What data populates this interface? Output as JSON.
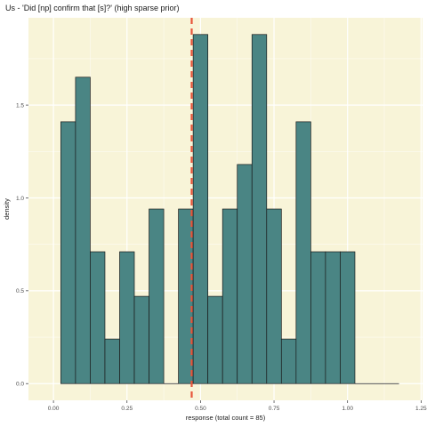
{
  "chart_data": {
    "type": "bar",
    "title": "Us - 'Did [np] confirm that [s]?' (high sparse prior)",
    "xlabel": "response (total count = 85)",
    "ylabel": "density",
    "xlim": [
      -0.085,
      1.255
    ],
    "ylim": [
      -0.09,
      1.97
    ],
    "x_ticks": [
      0,
      0.25,
      0.5,
      0.75,
      1,
      1.25
    ],
    "x_tick_labels": [
      "0.00",
      "0.25",
      "0.50",
      "0.75",
      "1.00",
      "1.25"
    ],
    "y_ticks": [
      0,
      0.5,
      1,
      1.5
    ],
    "y_tick_labels": [
      "0.0",
      "0.5",
      "1.0",
      "1.5"
    ],
    "bin_width": 0.05,
    "bins": [
      {
        "start": 0.025,
        "end": 0.075,
        "density": 1.41
      },
      {
        "start": 0.075,
        "end": 0.125,
        "density": 1.65
      },
      {
        "start": 0.125,
        "end": 0.175,
        "density": 0.71
      },
      {
        "start": 0.175,
        "end": 0.225,
        "density": 0.24
      },
      {
        "start": 0.225,
        "end": 0.275,
        "density": 0.71
      },
      {
        "start": 0.275,
        "end": 0.325,
        "density": 0.47
      },
      {
        "start": 0.325,
        "end": 0.375,
        "density": 0.94
      },
      {
        "start": 0.375,
        "end": 0.425,
        "density": 0.0
      },
      {
        "start": 0.425,
        "end": 0.475,
        "density": 0.94
      },
      {
        "start": 0.475,
        "end": 0.525,
        "density": 1.88
      },
      {
        "start": 0.525,
        "end": 0.575,
        "density": 0.47
      },
      {
        "start": 0.575,
        "end": 0.625,
        "density": 0.94
      },
      {
        "start": 0.625,
        "end": 0.675,
        "density": 1.18
      },
      {
        "start": 0.675,
        "end": 0.725,
        "density": 1.88
      },
      {
        "start": 0.725,
        "end": 0.775,
        "density": 0.94
      },
      {
        "start": 0.775,
        "end": 0.825,
        "density": 0.24
      },
      {
        "start": 0.825,
        "end": 0.875,
        "density": 1.41
      },
      {
        "start": 0.875,
        "end": 0.925,
        "density": 0.71
      },
      {
        "start": 0.925,
        "end": 0.975,
        "density": 0.71
      },
      {
        "start": 0.975,
        "end": 1.025,
        "density": 0.71
      },
      {
        "start": 1.025,
        "end": 1.075,
        "density": 0.0
      },
      {
        "start": 1.075,
        "end": 1.125,
        "density": 0.0
      },
      {
        "start": 1.125,
        "end": 1.175,
        "density": 0.0
      }
    ],
    "reference_line": {
      "x": 0.47,
      "style": "dashed"
    },
    "grid": true,
    "legend": "none",
    "colors": {
      "panel_background": "#f8f4d8",
      "bar_fill": "#4a8584",
      "bar_outline": "#1a1a1a",
      "reference_line": "#e8553a",
      "grid_major": "#ffffff"
    }
  }
}
